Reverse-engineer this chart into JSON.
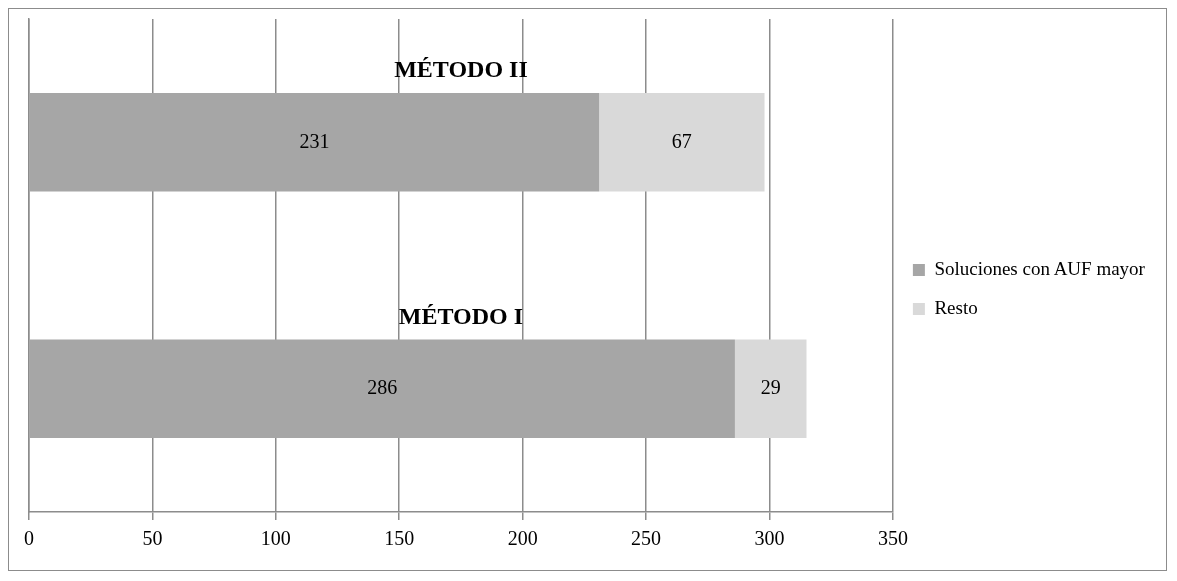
{
  "chart_data": {
    "type": "bar",
    "orientation": "horizontal",
    "stacked": true,
    "categories": [
      "MÉTODO II",
      "MÉTODO I"
    ],
    "series": [
      {
        "name": "Soluciones con AUF mayor",
        "color": "#a6a6a6",
        "values": [
          231,
          286
        ]
      },
      {
        "name": "Resto",
        "color": "#d9d9d9",
        "values": [
          67,
          29
        ]
      }
    ],
    "xlim": [
      0,
      350
    ],
    "xticks": [
      0,
      50,
      100,
      150,
      200,
      250,
      300,
      350
    ],
    "grid": "x",
    "legend": "right",
    "data_labels": true
  }
}
